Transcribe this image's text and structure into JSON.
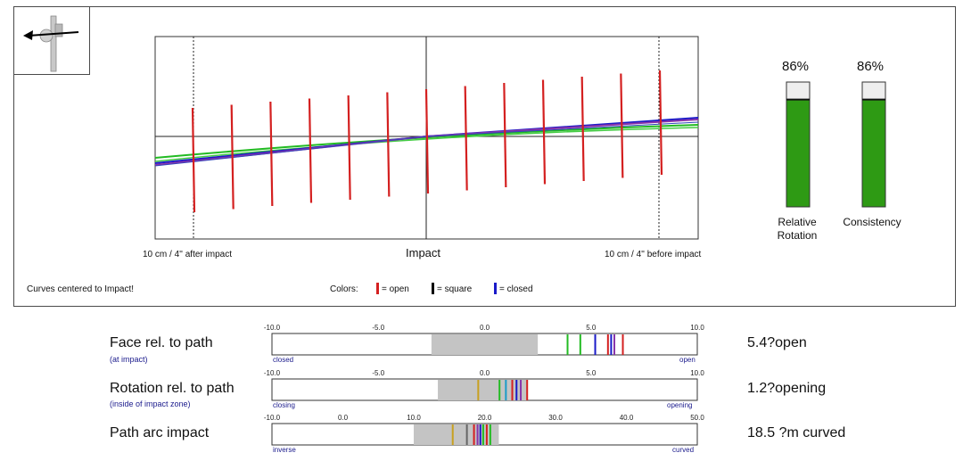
{
  "top_panel": {
    "after_label": "10 cm / 4'' after impact",
    "impact_label": "Impact",
    "before_label": "10 cm / 4'' before impact",
    "centered_note": "Curves centered to Impact!",
    "colors_label": "Colors:",
    "legend": [
      {
        "label": "= open",
        "color": "#d42020"
      },
      {
        "label": "= square",
        "color": "#000000"
      },
      {
        "label": "= closed",
        "color": "#1a1ac8"
      }
    ],
    "face_marks_count": 13
  },
  "bars": [
    {
      "name": "relative-rotation",
      "percent_label": "86%",
      "value": 86,
      "caption_line1": "Relative",
      "caption_line2": "Rotation"
    },
    {
      "name": "consistency",
      "percent_label": "86%",
      "value": 86,
      "caption_line1": "Consistency",
      "caption_line2": ""
    }
  ],
  "metric_rows": [
    {
      "title": "Face rel. to path",
      "subtitle": "(at impact)",
      "value_text": "5.4?open",
      "left_label": "closed",
      "right_label": "open",
      "ticks": [
        "-10.0",
        "-5.0",
        "0.0",
        "5.0",
        "10.0"
      ],
      "scale_min": -10,
      "scale_max": 10,
      "zone": [
        -2.5,
        2.5
      ],
      "marks": [
        {
          "v": 3.9,
          "color": "#22bb22"
        },
        {
          "v": 4.5,
          "color": "#22bb22"
        },
        {
          "v": 5.2,
          "color": "#1a1ac8"
        },
        {
          "v": 5.8,
          "color": "#d42020"
        },
        {
          "v": 5.95,
          "color": "#1a1ac8"
        },
        {
          "v": 6.1,
          "color": "#8833aa"
        },
        {
          "v": 6.5,
          "color": "#d42020"
        }
      ]
    },
    {
      "title": "Rotation rel. to path",
      "subtitle": "(inside of impact zone)",
      "value_text": "1.2?opening",
      "left_label": "closing",
      "right_label": "opening",
      "ticks": [
        "-10.0",
        "-5.0",
        "0.0",
        "5.0",
        "10.0"
      ],
      "scale_min": -10,
      "scale_max": 10,
      "zone": [
        -2.2,
        2.0
      ],
      "marks": [
        {
          "v": -0.3,
          "color": "#c8a020"
        },
        {
          "v": 0.7,
          "color": "#22bb22"
        },
        {
          "v": 1.0,
          "color": "#1a9bc8"
        },
        {
          "v": 1.3,
          "color": "#d42020"
        },
        {
          "v": 1.5,
          "color": "#1a1ac8"
        },
        {
          "v": 1.7,
          "color": "#8833aa"
        },
        {
          "v": 2.0,
          "color": "#d42020"
        }
      ]
    },
    {
      "title": "Path arc impact",
      "subtitle": "",
      "value_text": "18.5 ?m curved",
      "left_label": "inverse",
      "right_label": "curved",
      "ticks": [
        "-10.0",
        "0.0",
        "10.0",
        "20.0",
        "30.0",
        "40.0",
        "50.0"
      ],
      "scale_min": -10,
      "scale_max": 50,
      "zone": [
        10,
        22
      ],
      "marks": [
        {
          "v": 15.5,
          "color": "#c8a020"
        },
        {
          "v": 17.5,
          "color": "#666666"
        },
        {
          "v": 18.5,
          "color": "#d42020"
        },
        {
          "v": 19.0,
          "color": "#8833aa"
        },
        {
          "v": 19.4,
          "color": "#1a1ac8"
        },
        {
          "v": 19.8,
          "color": "#22bb22"
        },
        {
          "v": 20.3,
          "color": "#d42020"
        },
        {
          "v": 20.8,
          "color": "#22bb22"
        }
      ]
    }
  ]
}
